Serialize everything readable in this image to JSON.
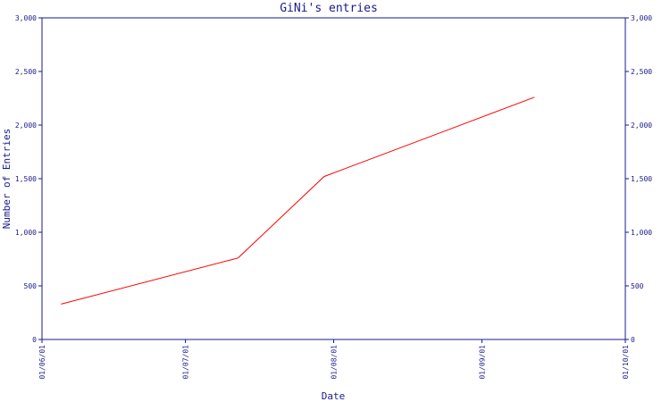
{
  "chart_data": {
    "type": "line",
    "title": "GiNi's entries",
    "xlabel": "Date",
    "ylabel": "Number of Entries",
    "x_ticks": [
      "01/06/01",
      "01/07/01",
      "01/08/01",
      "01/09/01",
      "01/10/01"
    ],
    "x_tick_dates": [
      "2001-06-01",
      "2001-07-01",
      "2001-08-01",
      "2001-09-01",
      "2001-10-01"
    ],
    "xlim": [
      "2001-06-01",
      "2001-10-01"
    ],
    "y_ticks": [
      {
        "value": 0,
        "label": "0"
      },
      {
        "value": 500,
        "label": "500"
      },
      {
        "value": 1000,
        "label": "1,000"
      },
      {
        "value": 1500,
        "label": "1,500"
      },
      {
        "value": 2000,
        "label": "2,000"
      },
      {
        "value": 2500,
        "label": "2,500"
      },
      {
        "value": 3000,
        "label": "3,000"
      }
    ],
    "ylim": [
      0,
      3000
    ],
    "grid": false,
    "series": [
      {
        "color": "#ff0000",
        "points": [
          {
            "x": "2001-06-05",
            "y": 330
          },
          {
            "x": "2001-07-12",
            "y": 760
          },
          {
            "x": "2001-07-30",
            "y": 1520
          },
          {
            "x": "2001-09-12",
            "y": 2260
          }
        ]
      }
    ]
  },
  "colors": {
    "axis": "#1a1a8c",
    "series": "#ff0000",
    "background": "#ffffff"
  }
}
